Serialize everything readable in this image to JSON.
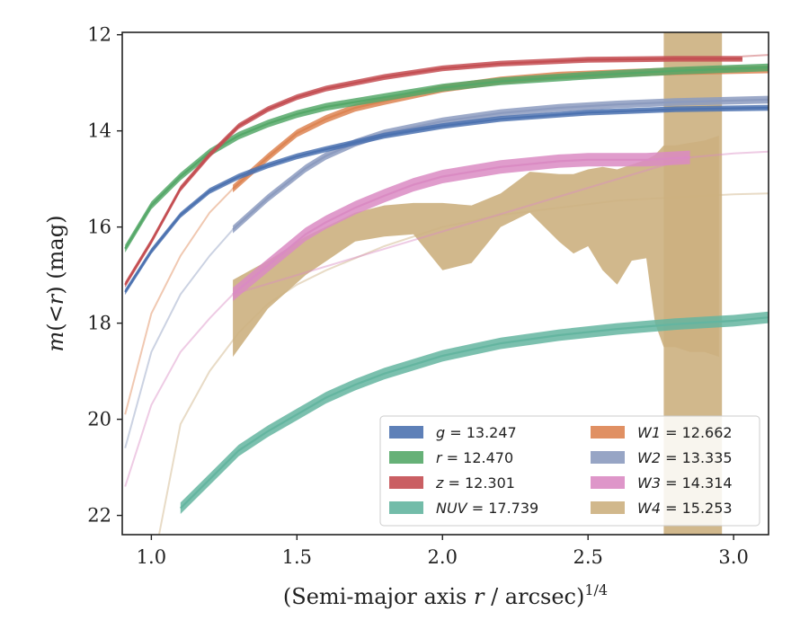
{
  "chart_data": {
    "type": "line",
    "xlabel_text": "(Semi-major axis ",
    "xlabel_var": "r",
    "xlabel_unit": " / arcsec)",
    "xlabel_sup": "1/4",
    "ylabel_func": "m",
    "ylabel_paren_open": "(<",
    "ylabel_var": "r",
    "ylabel_paren_close": ")",
    "ylabel_unit": " (mag)",
    "xlim": [
      0.9,
      3.12
    ],
    "ylim": [
      22.4,
      11.95
    ],
    "y_inverted": true,
    "grid": false,
    "legend_position": "lower-right",
    "x_ticks": [
      1.0,
      1.5,
      2.0,
      2.5,
      3.0
    ],
    "x_tick_labels": [
      "1.0",
      "1.5",
      "2.0",
      "2.5",
      "3.0"
    ],
    "y_ticks": [
      12,
      14,
      16,
      18,
      20,
      22
    ],
    "y_tick_labels": [
      "12",
      "14",
      "16",
      "18",
      "20",
      "22"
    ],
    "series": [
      {
        "name": "g",
        "legend_label": "= 13.247",
        "color": "#4c72b0",
        "band_width": 0.06,
        "x": [
          0.91,
          1.0,
          1.1,
          1.2,
          1.3,
          1.4,
          1.5,
          1.6,
          1.8,
          2.0,
          2.2,
          2.5,
          2.8,
          3.12
        ],
        "y": [
          17.35,
          16.5,
          15.75,
          15.25,
          14.95,
          14.72,
          14.53,
          14.38,
          14.1,
          13.9,
          13.75,
          13.62,
          13.55,
          13.52
        ],
        "faint_x": [],
        "faint_y": []
      },
      {
        "name": "r",
        "legend_label": "= 12.470",
        "color": "#55a868",
        "band_width": 0.08,
        "x": [
          0.91,
          1.0,
          1.1,
          1.2,
          1.3,
          1.4,
          1.5,
          1.6,
          1.8,
          2.0,
          2.2,
          2.5,
          2.8,
          3.12
        ],
        "y": [
          16.45,
          15.55,
          14.95,
          14.45,
          14.1,
          13.85,
          13.65,
          13.5,
          13.3,
          13.1,
          12.97,
          12.85,
          12.75,
          12.68
        ],
        "faint_x": [],
        "faint_y": []
      },
      {
        "name": "z",
        "legend_label": "= 12.301",
        "color": "#c44e52",
        "band_width": 0.06,
        "x": [
          0.91,
          1.0,
          1.1,
          1.2,
          1.3,
          1.4,
          1.5,
          1.6,
          1.8,
          2.0,
          2.2,
          2.5,
          2.8,
          3.03
        ],
        "y": [
          17.2,
          16.3,
          15.2,
          14.5,
          13.9,
          13.55,
          13.3,
          13.12,
          12.88,
          12.7,
          12.6,
          12.52,
          12.5,
          12.5
        ],
        "faint_x": [
          3.03,
          3.12
        ],
        "faint_y": [
          12.45,
          12.42
        ]
      },
      {
        "name": "NUV",
        "legend_label": "= 17.739",
        "color": "#64b5a0",
        "band_width": 0.12,
        "x": [
          1.1,
          1.2,
          1.3,
          1.4,
          1.5,
          1.6,
          1.7,
          1.8,
          2.0,
          2.2,
          2.4,
          2.6,
          2.8,
          3.0,
          3.12
        ],
        "y": [
          21.85,
          21.25,
          20.65,
          20.25,
          19.9,
          19.55,
          19.28,
          19.05,
          18.68,
          18.42,
          18.25,
          18.12,
          18.02,
          17.95,
          17.88
        ],
        "faint_x": [],
        "faint_y": []
      },
      {
        "name": "W1",
        "legend_label": "= 12.662",
        "color": "#dd8452",
        "band_width": 0.08,
        "x": [
          1.28,
          1.4,
          1.5,
          1.6,
          1.7,
          1.8,
          2.0,
          2.2,
          2.4,
          2.6,
          2.8,
          3.12
        ],
        "y": [
          15.2,
          14.55,
          14.05,
          13.75,
          13.52,
          13.38,
          13.12,
          12.95,
          12.85,
          12.8,
          12.76,
          12.72
        ],
        "faint_x": [
          0.91,
          1.0,
          1.1,
          1.2,
          1.28
        ],
        "faint_y": [
          19.9,
          17.8,
          16.6,
          15.7,
          15.2
        ]
      },
      {
        "name": "W2",
        "legend_label": "= 13.335",
        "color": "#8c9bbf",
        "band_width": 0.08,
        "x": [
          1.28,
          1.4,
          1.53,
          1.6,
          1.7,
          1.8,
          2.0,
          2.2,
          2.4,
          2.6,
          2.8,
          3.12
        ],
        "y": [
          16.05,
          15.4,
          14.78,
          14.52,
          14.25,
          14.05,
          13.8,
          13.63,
          13.52,
          13.45,
          13.4,
          13.35
        ],
        "faint_x": [
          0.91,
          1.0,
          1.1,
          1.2,
          1.28
        ],
        "faint_y": [
          20.6,
          18.6,
          17.4,
          16.6,
          16.05
        ]
      },
      {
        "name": "W3",
        "legend_label": "= 14.314",
        "color": "#da8bc3",
        "band_width": 0.14,
        "x": [
          1.28,
          1.4,
          1.53,
          1.6,
          1.7,
          1.8,
          1.9,
          2.0,
          2.2,
          2.4,
          2.5,
          2.6,
          2.7,
          2.85
        ],
        "y": [
          17.4,
          16.8,
          16.15,
          15.9,
          15.6,
          15.35,
          15.12,
          14.95,
          14.75,
          14.63,
          14.6,
          14.6,
          14.6,
          14.55
        ],
        "faint_x": [
          0.91,
          1.0,
          1.1,
          1.2,
          1.28,
          2.85,
          3.0,
          3.12
        ],
        "faint_y": [
          21.4,
          19.7,
          18.6,
          17.9,
          17.4,
          14.55,
          14.47,
          14.43
        ]
      },
      {
        "name": "W4",
        "legend_label": "= 15.253",
        "color": "#ccb080",
        "band_width": 0,
        "x": [],
        "y": [],
        "faint_x": [
          1.02,
          1.1,
          1.2,
          1.3,
          1.4,
          1.5,
          1.6,
          1.8,
          2.0,
          2.2,
          2.4,
          2.6,
          2.8,
          3.0,
          3.12
        ],
        "faint_y": [
          22.6,
          20.1,
          19.0,
          18.2,
          17.6,
          17.2,
          16.9,
          16.4,
          16.0,
          15.75,
          15.6,
          15.45,
          15.38,
          15.32,
          15.3
        ],
        "band_x": [
          1.28,
          1.4,
          1.53,
          1.7,
          1.8,
          1.9,
          2.0,
          2.1,
          2.2,
          2.3,
          2.4,
          2.45,
          2.5,
          2.55,
          2.6,
          2.65,
          2.7,
          2.73,
          2.76,
          2.8,
          2.85,
          2.9,
          2.95
        ],
        "band_upper": [
          17.1,
          16.7,
          16.2,
          15.7,
          15.55,
          15.5,
          15.5,
          15.55,
          15.3,
          14.85,
          14.9,
          14.9,
          14.8,
          14.75,
          14.8,
          14.7,
          14.6,
          14.5,
          14.3,
          14.3,
          14.25,
          14.2,
          14.1
        ],
        "band_lower": [
          18.7,
          17.7,
          17.0,
          16.3,
          16.2,
          16.15,
          16.9,
          16.75,
          16.0,
          15.7,
          16.3,
          16.55,
          16.4,
          16.9,
          17.2,
          16.7,
          16.65,
          18.0,
          18.5,
          18.5,
          18.6,
          18.6,
          18.7
        ],
        "spike_x": [
          2.76,
          2.96
        ],
        "spike_top": 11.95,
        "spike_bottom": 22.4
      }
    ]
  }
}
